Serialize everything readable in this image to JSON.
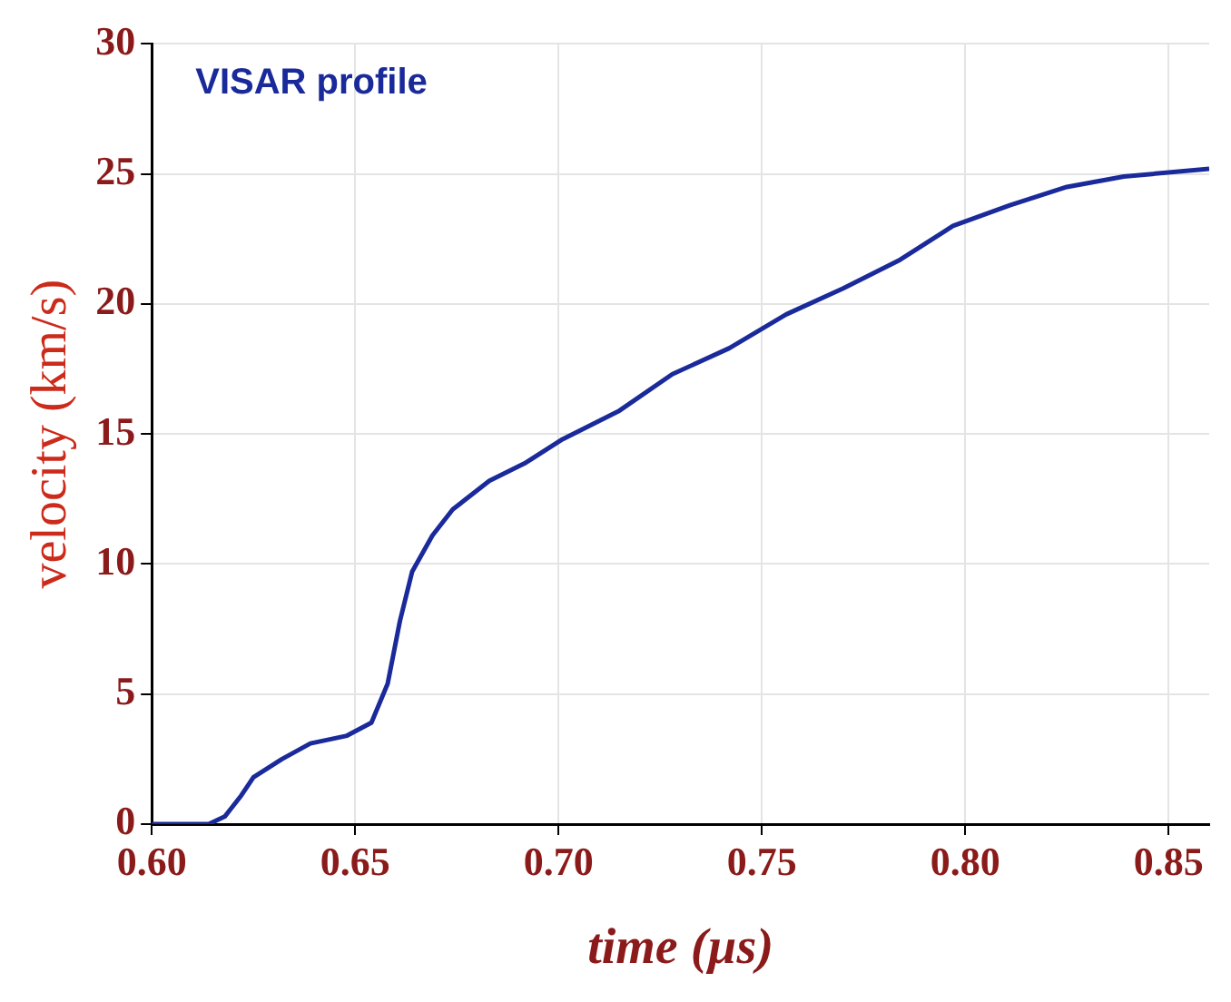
{
  "chart_data": {
    "type": "line",
    "title": "VISAR profile",
    "xlabel": "time (µs)",
    "ylabel": "velocity (km/s)",
    "xlim": [
      0.6,
      0.86
    ],
    "xticks": [
      {
        "value": 0.6,
        "label": "0.60"
      },
      {
        "value": 0.65,
        "label": "0.65"
      },
      {
        "value": 0.7,
        "label": "0.70"
      },
      {
        "value": 0.75,
        "label": "0.75"
      },
      {
        "value": 0.8,
        "label": "0.80"
      },
      {
        "value": 0.85,
        "label": "0.85"
      }
    ],
    "ylim": [
      0,
      30
    ],
    "yticks": [
      0,
      5,
      10,
      15,
      20,
      25,
      30
    ],
    "grid": true,
    "marker": "none",
    "line_style": "solid",
    "series": [
      {
        "color": "#1a2a9a",
        "x": [
          0.6,
          0.614,
          0.618,
          0.622,
          0.625,
          0.632,
          0.639,
          0.648,
          0.654,
          0.658,
          0.661,
          0.664,
          0.669,
          0.674,
          0.683,
          0.692,
          0.701,
          0.715,
          0.728,
          0.742,
          0.756,
          0.77,
          0.784,
          0.797,
          0.811,
          0.825,
          0.839,
          0.86
        ],
        "values": [
          0,
          0,
          0.3,
          1.1,
          1.8,
          2.5,
          3.1,
          3.4,
          3.9,
          5.4,
          7.8,
          9.7,
          11.1,
          12.1,
          13.2,
          13.9,
          14.8,
          15.9,
          17.3,
          18.3,
          19.6,
          20.6,
          21.7,
          23,
          23.8,
          24.5,
          24.9,
          25.2
        ]
      }
    ]
  }
}
